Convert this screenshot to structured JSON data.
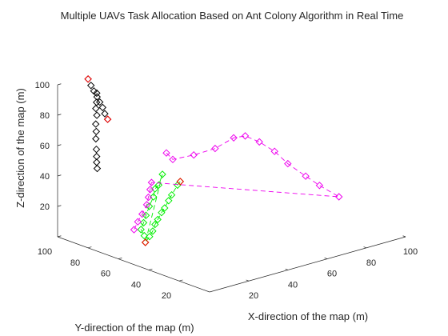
{
  "chart_data": {
    "type": "scatter",
    "title": "Multiple UAVs Task Allocation Based on Ant Colony Algorithm in Real Time",
    "xlabel": "X-direction of the map (m)",
    "ylabel": "Y-direction of the map (m)",
    "zlabel": "Z-direction of the map (m)",
    "xlim": [
      0,
      100
    ],
    "ylim": [
      0,
      100
    ],
    "zlim": [
      0,
      100
    ],
    "xticks": [
      "20",
      "40",
      "60",
      "80",
      "100"
    ],
    "yticks": [
      "20",
      "40",
      "60",
      "80",
      "100"
    ],
    "zticks": [
      "20",
      "40",
      "60",
      "80",
      "100"
    ],
    "grid": false,
    "marker": "diamond",
    "series": [
      {
        "color": "#000000",
        "line": "none",
        "points": [
          [
            13.3,
            97.1,
            100.0
          ],
          [
            14.4,
            96.6,
            95.6
          ],
          [
            15.5,
            96.1,
            91.7
          ],
          [
            16.7,
            95.6,
            87.6
          ],
          [
            17.7,
            95.1,
            84.0
          ],
          [
            18.8,
            94.6,
            80.2
          ],
          [
            19.6,
            94.2,
            76.0
          ],
          [
            20.8,
            93.9,
            72.0
          ],
          [
            16.3,
            95.3,
            90.3
          ],
          [
            16.0,
            95.0,
            84.5
          ],
          [
            15.1,
            94.3,
            81.0
          ],
          [
            15.3,
            93.9,
            76.6
          ],
          [
            13.8,
            92.7,
            71.8
          ],
          [
            13.8,
            92.4,
            67.0
          ],
          [
            13.0,
            91.6,
            62.8
          ],
          [
            12.9,
            91.1,
            56.1
          ],
          [
            12.7,
            90.7,
            51.6
          ],
          [
            12.3,
            90.2,
            48.1
          ],
          [
            12.3,
            89.8,
            44.2
          ]
        ]
      },
      {
        "color": "#00ee00",
        "line": "dashed",
        "points": [
          [
            40.4,
            71.4,
            32.1
          ],
          [
            38.7,
            71.0,
            30.5
          ],
          [
            35.8,
            71.1,
            25.0
          ],
          [
            34.1,
            70.9,
            22.0
          ],
          [
            31.8,
            70.6,
            18.1
          ],
          [
            29.9,
            70.2,
            15.9
          ],
          [
            27.9,
            70.1,
            12.1
          ],
          [
            26.3,
            69.8,
            9.5
          ],
          [
            25.1,
            69.8,
            5.6
          ],
          [
            23.1,
            69.3,
            2.9
          ],
          [
            20.8,
            69.1,
            0.0
          ],
          [
            35.4,
            76.7,
            36.7
          ],
          [
            33.2,
            76.3,
            30.6
          ],
          [
            31.0,
            75.9,
            29.0
          ],
          [
            29.9,
            75.5,
            24.3
          ],
          [
            27.0,
            74.5,
            19.5
          ],
          [
            24.7,
            73.7,
            14.7
          ],
          [
            23.1,
            73.2,
            10.6
          ],
          [
            21.5,
            72.9,
            6.8
          ],
          [
            22.8,
            72.4,
            2.5
          ]
        ]
      },
      {
        "color": "#ee00ee",
        "line": "dashed",
        "points": [
          [
            39.3,
            79.1,
            48.5
          ],
          [
            42.1,
            78.5,
            43.4
          ],
          [
            48.7,
            73.2,
            45.9
          ],
          [
            55.0,
            67.3,
            50.0
          ],
          [
            60.6,
            62.3,
            56.8
          ],
          [
            63.6,
            58.6,
            58.3
          ],
          [
            68.1,
            55.1,
            54.0
          ],
          [
            72.7,
            51.0,
            47.6
          ],
          [
            77.0,
            47.8,
            39.1
          ],
          [
            82.2,
            42.8,
            30.8
          ],
          [
            86.1,
            38.7,
            24.8
          ],
          [
            93.0,
            34.8,
            16.2
          ],
          [
            32.7,
            80.4,
            31.0
          ],
          [
            32.0,
            80.4,
            26.6
          ],
          [
            30.8,
            80.0,
            22.1
          ],
          [
            29.8,
            79.8,
            17.6
          ],
          [
            27.1,
            79.3,
            12.6
          ],
          [
            24.5,
            78.8,
            8.7
          ],
          [
            22.4,
            78.6,
            4.3
          ]
        ]
      },
      {
        "color": "#ff0000",
        "line": "none",
        "points": [
          [
            13.3,
            97.1,
            100.0
          ],
          [
            20.8,
            93.9,
            72.0
          ],
          [
            40.4,
            71.4,
            32.1
          ],
          [
            20.8,
            69.1,
            0.0
          ]
        ]
      }
    ]
  }
}
